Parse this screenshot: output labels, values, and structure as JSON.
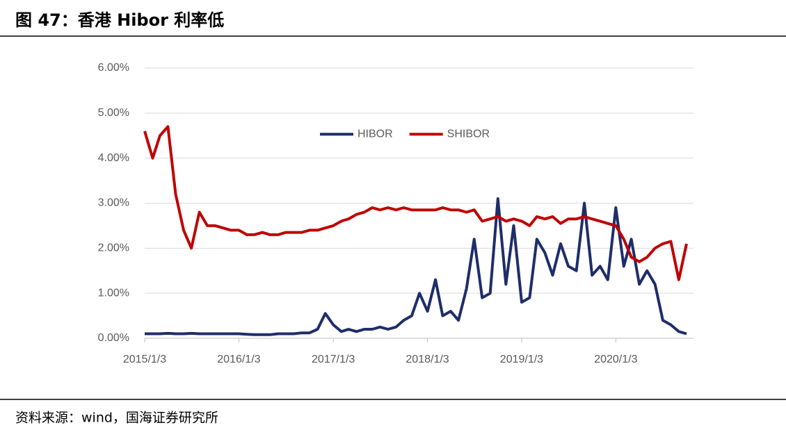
{
  "header": {
    "title": "图 47：香港 Hibor 利率低"
  },
  "chart_data": {
    "type": "line",
    "x": [
      "2015/1/3",
      "2015/2/3",
      "2015/3/3",
      "2015/4/3",
      "2015/5/3",
      "2015/6/3",
      "2015/7/3",
      "2015/8/3",
      "2015/9/3",
      "2015/10/3",
      "2015/11/3",
      "2015/12/3",
      "2016/1/3",
      "2016/2/3",
      "2016/3/3",
      "2016/4/3",
      "2016/5/3",
      "2016/6/3",
      "2016/7/3",
      "2016/8/3",
      "2016/9/3",
      "2016/10/3",
      "2016/11/3",
      "2016/12/3",
      "2017/1/3",
      "2017/2/3",
      "2017/3/3",
      "2017/4/3",
      "2017/5/3",
      "2017/6/3",
      "2017/7/3",
      "2017/8/3",
      "2017/9/3",
      "2017/10/3",
      "2017/11/3",
      "2017/12/3",
      "2018/1/3",
      "2018/2/3",
      "2018/3/3",
      "2018/4/3",
      "2018/5/3",
      "2018/6/3",
      "2018/7/3",
      "2018/8/3",
      "2018/9/3",
      "2018/10/3",
      "2018/11/3",
      "2018/12/3",
      "2019/1/3",
      "2019/2/3",
      "2019/3/3",
      "2019/4/3",
      "2019/5/3",
      "2019/6/3",
      "2019/7/3",
      "2019/8/3",
      "2019/9/3",
      "2019/10/3",
      "2019/11/3",
      "2019/12/3",
      "2020/1/3",
      "2020/2/3",
      "2020/3/3",
      "2020/4/3",
      "2020/5/3",
      "2020/6/3",
      "2020/7/3",
      "2020/8/3",
      "2020/9/3",
      "2020/10/3"
    ],
    "series": [
      {
        "name": "HIBOR",
        "color": "#1f2d6b",
        "values": [
          0.1,
          0.1,
          0.1,
          0.11,
          0.1,
          0.1,
          0.11,
          0.1,
          0.1,
          0.1,
          0.1,
          0.1,
          0.1,
          0.09,
          0.08,
          0.08,
          0.08,
          0.1,
          0.1,
          0.1,
          0.12,
          0.12,
          0.2,
          0.55,
          0.3,
          0.15,
          0.2,
          0.15,
          0.2,
          0.2,
          0.25,
          0.2,
          0.25,
          0.4,
          0.5,
          1.0,
          0.6,
          1.3,
          0.5,
          0.6,
          0.4,
          1.1,
          2.2,
          0.9,
          1.0,
          3.1,
          1.2,
          2.5,
          0.8,
          0.9,
          2.2,
          1.9,
          1.4,
          2.1,
          1.6,
          1.5,
          3.0,
          1.4,
          1.6,
          1.3,
          2.9,
          1.6,
          2.2,
          1.2,
          1.5,
          1.2,
          0.4,
          0.3,
          0.15,
          0.1
        ]
      },
      {
        "name": "SHIBOR",
        "color": "#c00000",
        "values": [
          4.6,
          4.0,
          4.5,
          4.7,
          3.2,
          2.4,
          2.0,
          2.8,
          2.5,
          2.5,
          2.45,
          2.4,
          2.4,
          2.3,
          2.3,
          2.35,
          2.3,
          2.3,
          2.35,
          2.35,
          2.35,
          2.4,
          2.4,
          2.45,
          2.5,
          2.6,
          2.65,
          2.75,
          2.8,
          2.9,
          2.85,
          2.9,
          2.85,
          2.9,
          2.85,
          2.85,
          2.85,
          2.85,
          2.9,
          2.85,
          2.85,
          2.8,
          2.85,
          2.6,
          2.65,
          2.7,
          2.6,
          2.65,
          2.6,
          2.5,
          2.7,
          2.65,
          2.7,
          2.55,
          2.65,
          2.65,
          2.7,
          2.65,
          2.6,
          2.55,
          2.5,
          2.2,
          1.8,
          1.7,
          1.8,
          2.0,
          2.1,
          2.15,
          1.3,
          2.1
        ]
      }
    ],
    "xlim": [
      "2015/1/3",
      "2020/10/30"
    ],
    "xticks": [
      "2015/1/3",
      "2016/1/3",
      "2017/1/3",
      "2018/1/3",
      "2019/1/3",
      "2020/1/3"
    ],
    "ylim": [
      0,
      6
    ],
    "yticks": [
      {
        "value": 0,
        "label": "0.00%"
      },
      {
        "value": 1,
        "label": "1.00%"
      },
      {
        "value": 2,
        "label": "2.00%"
      },
      {
        "value": 3,
        "label": "3.00%"
      },
      {
        "value": 4,
        "label": "4.00%"
      },
      {
        "value": 5,
        "label": "5.00%"
      },
      {
        "value": 6,
        "label": "6.00%"
      }
    ],
    "grid": true,
    "legend": "top"
  },
  "footer": {
    "source": "资料来源：wind，国海证券研究所"
  }
}
